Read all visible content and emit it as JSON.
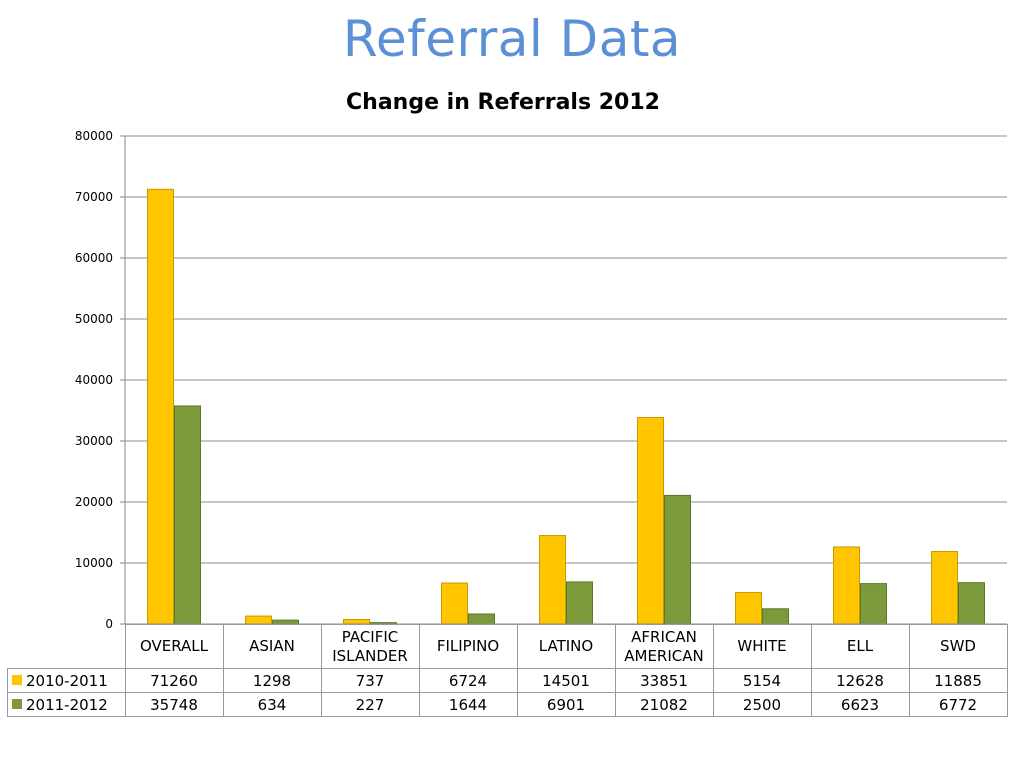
{
  "slide_title": "Referral Data",
  "colors": {
    "series_2010_2011": "#ffc600",
    "series_2011_2012": "#7b9a3b",
    "title_blue": "#5b8fd6",
    "grid": "#8c8c8c"
  },
  "chart_data": {
    "type": "bar",
    "title": "Change in Referrals 2012",
    "categories": [
      "OVERALL",
      "ASIAN",
      "PACIFIC ISLANDER",
      "FILIPINO",
      "LATINO",
      "AFRICAN AMERICAN",
      "WHITE",
      "ELL",
      "SWD"
    ],
    "category_lines": [
      [
        "OVERALL"
      ],
      [
        "ASIAN"
      ],
      [
        "PACIFIC",
        "ISLANDER"
      ],
      [
        "FILIPINO"
      ],
      [
        "LATINO"
      ],
      [
        "AFRICAN",
        "AMERICAN"
      ],
      [
        "WHITE"
      ],
      [
        "ELL"
      ],
      [
        "SWD"
      ]
    ],
    "series": [
      {
        "name": "2010-2011",
        "values": [
          71260,
          1298,
          737,
          6724,
          14501,
          33851,
          5154,
          12628,
          11885
        ]
      },
      {
        "name": "2011-2012",
        "values": [
          35748,
          634,
          227,
          1644,
          6901,
          21082,
          2500,
          6623,
          6772
        ]
      }
    ],
    "ylim": [
      0,
      80000
    ],
    "yticks": [
      0,
      10000,
      20000,
      30000,
      40000,
      50000,
      60000,
      70000,
      80000
    ],
    "grid": true,
    "legend": "data table below chart",
    "data_table": true
  }
}
